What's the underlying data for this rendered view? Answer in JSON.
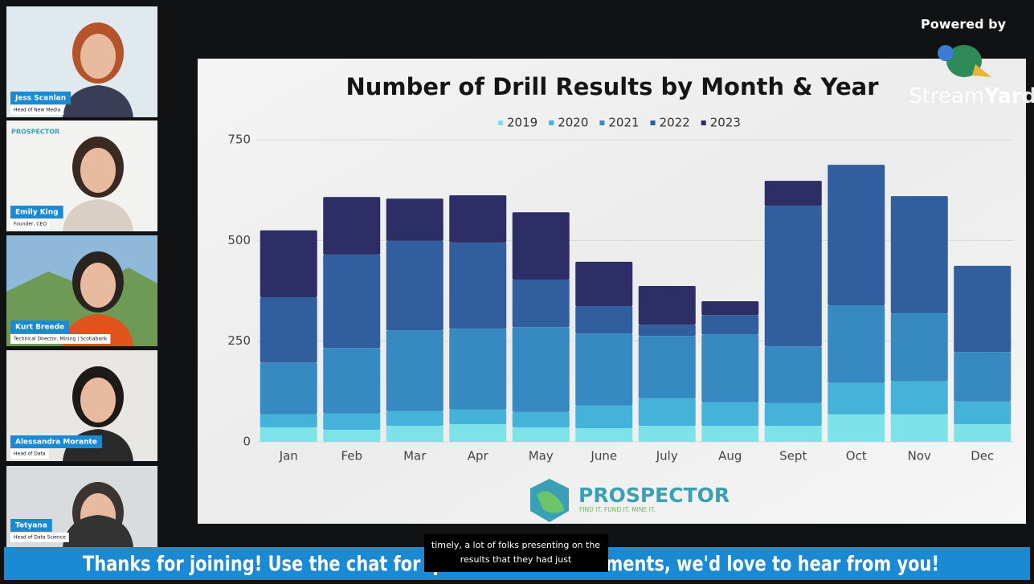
{
  "participants": [
    {
      "name": "Jess Scanlan",
      "role": "Head of New Media"
    },
    {
      "name": "Emily King",
      "role": "Founder, CEO",
      "logo": "PROSPECTOR"
    },
    {
      "name": "Kurt Breede",
      "role": "Technical Director, Mining | Scotiabank"
    },
    {
      "name": "Alessandra Morante",
      "role": "Head of Data"
    },
    {
      "name": "Tetyana",
      "role": "Head of Data Science"
    }
  ],
  "branding": {
    "powered_by": "Powered by",
    "stream": "Stream",
    "yard": "Yard"
  },
  "slide_logo": {
    "name": "PROSPECTOR",
    "tagline": "FIND IT. FUND IT. MINE IT."
  },
  "chart_data": {
    "type": "stacked_bar",
    "title": "Number of Drill Results by Month & Year",
    "categories": [
      "Jan",
      "Feb",
      "Mar",
      "Apr",
      "May",
      "June",
      "July",
      "Aug",
      "Sept",
      "Oct",
      "Nov",
      "Dec"
    ],
    "series": [
      {
        "name": "2019",
        "color": "#7de3e8",
        "values": [
          36,
          30,
          40,
          44,
          36,
          34,
          40,
          40,
          40,
          68,
          68,
          44
        ]
      },
      {
        "name": "2020",
        "color": "#45b2da",
        "values": [
          32,
          40,
          36,
          36,
          38,
          56,
          68,
          58,
          56,
          78,
          82,
          56
        ]
      },
      {
        "name": "2021",
        "color": "#3789c2",
        "values": [
          129,
          163,
          201,
          201,
          211,
          179,
          155,
          169,
          141,
          193,
          169,
          123
        ]
      },
      {
        "name": "2022",
        "color": "#305e9e",
        "values": [
          162,
          232,
          222,
          214,
          118,
          68,
          28,
          48,
          349,
          349,
          291,
          214
        ]
      },
      {
        "name": "2023",
        "color": "#2d2e66",
        "values": [
          166,
          143,
          105,
          117,
          167,
          110,
          96,
          34,
          62,
          null,
          null,
          null
        ]
      }
    ],
    "ylim": [
      0,
      750
    ],
    "yticks": [
      0,
      250,
      500,
      750
    ],
    "grid": true,
    "legend": "top"
  },
  "caption": [
    "timely, a lot of folks presenting on the",
    "results that they had just"
  ],
  "banner": "Thanks for joining! Use the chat for questions and comments, we'd love to hear from you!"
}
